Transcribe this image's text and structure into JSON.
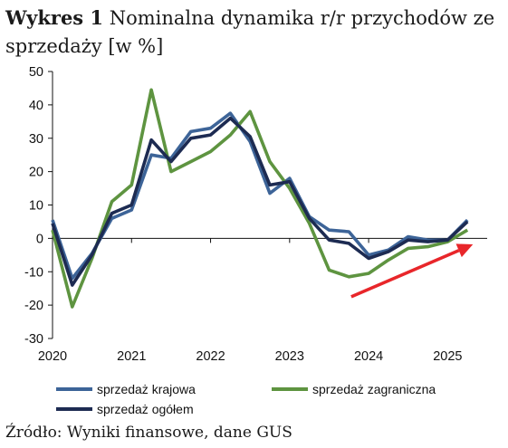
{
  "title": {
    "prefix": "Wykres 1",
    "text": "Nominalna dynamika r/r przychodów ze sprzedaży [w %]"
  },
  "source": "Źródło: Wyniki finansowe, dane GUS",
  "chart_data": {
    "type": "line",
    "x": [
      2020.0,
      2020.25,
      2020.5,
      2020.75,
      2021.0,
      2021.25,
      2021.5,
      2021.75,
      2022.0,
      2022.25,
      2022.5,
      2022.75,
      2023.0,
      2023.25,
      2023.5,
      2023.75,
      2024.0,
      2024.25,
      2024.5,
      2024.75,
      2025.0,
      2025.25,
      2025.5
    ],
    "series": [
      {
        "name": "sprzedaż krajowa",
        "color": "#3d6498",
        "values": [
          5.5,
          -12.0,
          -4.5,
          6.0,
          8.5,
          25.0,
          24.0,
          32.0,
          33.0,
          37.5,
          29.0,
          13.5,
          18.0,
          6.5,
          2.5,
          2.0,
          -5.0,
          -3.5,
          0.5,
          -0.5,
          -0.5,
          5.5,
          null
        ]
      },
      {
        "name": "sprzedaż zagraniczna",
        "color": "#5e9440",
        "values": [
          2.5,
          -20.5,
          -6.0,
          11.0,
          16.0,
          44.5,
          20.0,
          23.0,
          26.0,
          31.0,
          38.0,
          23.0,
          15.0,
          4.5,
          -9.5,
          -11.5,
          -10.5,
          -6.5,
          -3.0,
          -2.5,
          -1.0,
          2.5,
          null
        ]
      },
      {
        "name": "sprzedaż ogółem",
        "color": "#1d2b52",
        "values": [
          4.5,
          -14.0,
          -5.0,
          7.5,
          10.0,
          29.5,
          23.0,
          30.0,
          31.0,
          36.0,
          30.5,
          16.0,
          17.0,
          6.0,
          -0.5,
          -1.5,
          -6.0,
          -4.0,
          -0.5,
          -1.0,
          -0.5,
          5.0,
          null
        ]
      }
    ],
    "annotations": [
      {
        "type": "arrow",
        "color": "#e8262a",
        "from": {
          "x": 2023.78,
          "y": -17.5
        },
        "to": {
          "x": 2025.32,
          "y": -1.8
        }
      }
    ],
    "ylim": [
      -30,
      50
    ],
    "yticks": [
      -30,
      -20,
      -10,
      0,
      10,
      20,
      30,
      40,
      50
    ],
    "xlim": [
      2020,
      2025.5
    ],
    "xticks": [
      "2020",
      "2021",
      "2022",
      "2023",
      "2024",
      "2025"
    ],
    "grid": false,
    "legend_position": "bottom"
  }
}
